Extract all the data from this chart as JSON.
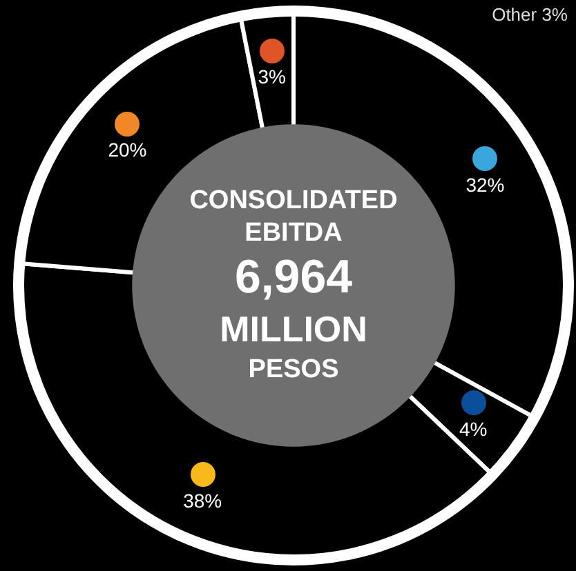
{
  "chart_data": {
    "type": "donut",
    "title": "CONSOLIDATED EBITDA",
    "subtitle": "6,964 MILLION PESOS",
    "categories": [
      null,
      null,
      null,
      null,
      null
    ],
    "values": [
      32,
      4,
      38,
      20,
      3
    ],
    "colors": [
      "#000000",
      "#000000",
      "#000000",
      "#000000",
      "#000000"
    ],
    "value_labels": [
      "32%",
      "4%",
      "38%",
      "20%",
      "3%"
    ],
    "annotations": [
      "Other 3%"
    ],
    "legend": false
  }
}
